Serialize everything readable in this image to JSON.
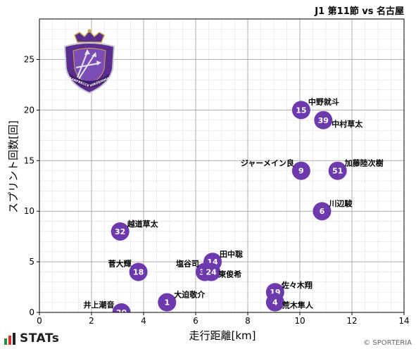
{
  "chart_data": {
    "type": "scatter",
    "title": "J1 第11節 vs 名古屋",
    "xlabel": "走行距離[km]",
    "ylabel": "スプリント回数[回]",
    "xlim": [
      0,
      14
    ],
    "ylim": [
      0,
      29
    ],
    "xticks": [
      0,
      2,
      4,
      6,
      8,
      10,
      12,
      14
    ],
    "yticks": [
      0,
      5,
      10,
      15,
      20,
      25
    ],
    "grid": true,
    "marker_color": "#6c3aad",
    "points": [
      {
        "number": "15",
        "name": "中野就斗",
        "x": 10.05,
        "y": 20
      },
      {
        "number": "39",
        "name": "中村草太",
        "x": 10.9,
        "y": 19
      },
      {
        "number": "9",
        "name": "ジャーメイン良",
        "x": 10.05,
        "y": 14
      },
      {
        "number": "51",
        "name": "加藤陸次樹",
        "x": 11.45,
        "y": 14
      },
      {
        "number": "6",
        "name": "川辺駿",
        "x": 10.85,
        "y": 10
      },
      {
        "number": "32",
        "name": "越道草太",
        "x": 3.1,
        "y": 8
      },
      {
        "number": "14",
        "name": "田中聡",
        "x": 6.65,
        "y": 5
      },
      {
        "number": "18",
        "name": "菅大輝",
        "x": 3.8,
        "y": 4
      },
      {
        "number": "33",
        "name": "塩谷司",
        "x": 6.35,
        "y": 4
      },
      {
        "number": "24",
        "name": "東俊希",
        "x": 6.6,
        "y": 4
      },
      {
        "number": "19",
        "name": "佐々木翔",
        "x": 9.05,
        "y": 2
      },
      {
        "number": "1",
        "name": "大迫敬介",
        "x": 4.9,
        "y": 1
      },
      {
        "number": "4",
        "name": "荒木隼人",
        "x": 9.05,
        "y": 1
      },
      {
        "number": "20",
        "name": "井上潮音",
        "x": 3.15,
        "y": 0
      }
    ]
  },
  "team_logo": {
    "text_left": "SANFRECCE",
    "text_right": "HIROSHIMA",
    "colors": {
      "purple": "#5b2d8e",
      "gold": "#c7a64a",
      "silver": "#c9c9d6"
    }
  },
  "footer": {
    "brand": "STATs",
    "brand_colors": [
      "#2e8b3a",
      "#d6322b",
      "#222222"
    ],
    "copyright": "© SPORTERIA"
  }
}
